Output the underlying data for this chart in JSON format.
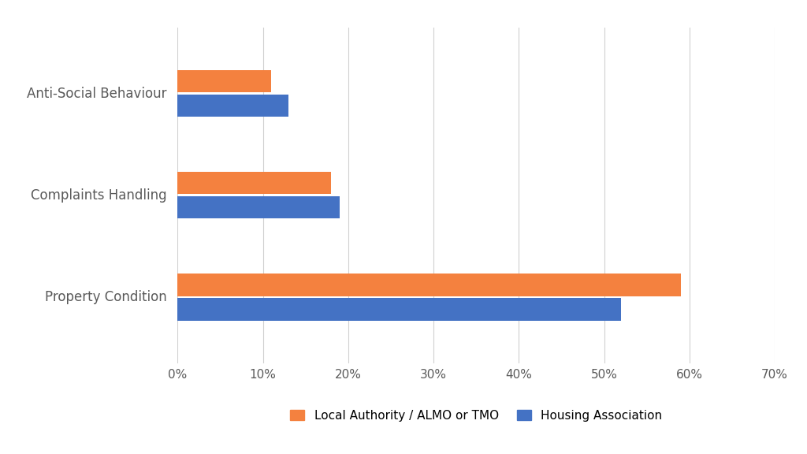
{
  "categories": [
    "Property Condition",
    "Complaints Handling",
    "Anti-Social Behaviour"
  ],
  "local_authority": [
    0.59,
    0.18,
    0.11
  ],
  "housing_association": [
    0.52,
    0.19,
    0.13
  ],
  "local_authority_color": "#F4813F",
  "housing_association_color": "#4472C4",
  "local_authority_label": "Local Authority / ALMO or TMO",
  "housing_association_label": "Housing Association",
  "xlim": [
    0,
    0.7
  ],
  "xticks": [
    0.0,
    0.1,
    0.2,
    0.3,
    0.4,
    0.5,
    0.6,
    0.7
  ],
  "xtick_labels": [
    "0%",
    "10%",
    "20%",
    "30%",
    "40%",
    "50%",
    "60%",
    "70%"
  ],
  "background_color": "#ffffff",
  "bar_height": 0.22,
  "bar_gap": 0.02,
  "figsize": [
    10.24,
    5.76
  ],
  "dpi": 100,
  "label_fontsize": 12,
  "tick_fontsize": 11,
  "legend_fontsize": 11,
  "ylabel_color": "#595959",
  "xlabel_color": "#595959",
  "grid_color": "#d0d0d0"
}
